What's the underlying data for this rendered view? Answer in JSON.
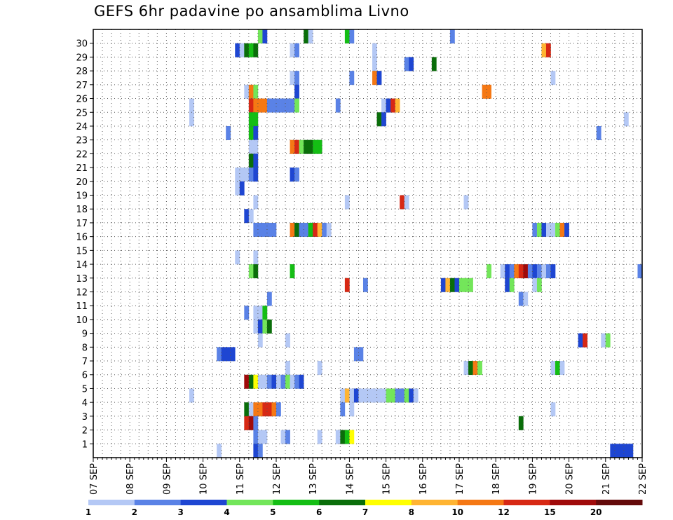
{
  "chart_data": {
    "type": "heatmap",
    "title": "GEFS 6hr padavine po ansamblima Livno",
    "xlabel": "",
    "ylabel": "",
    "x_ticks": [
      "07 SEP",
      "08 SEP",
      "09 SEP",
      "10 SEP",
      "11 SEP",
      "12 SEP",
      "13 SEP",
      "14 SEP",
      "15 SEP",
      "16 SEP",
      "17 SEP",
      "18 SEP",
      "19 SEP",
      "20 SEP",
      "21 SEP",
      "22 SEP"
    ],
    "y_ticks": [
      "1",
      "2",
      "3",
      "4",
      "5",
      "6",
      "7",
      "8",
      "9",
      "10",
      "11",
      "12",
      "13",
      "14",
      "15",
      "16",
      "17",
      "18",
      "19",
      "20",
      "21",
      "22",
      "23",
      "24",
      "25",
      "26",
      "27",
      "28",
      "29",
      "30"
    ],
    "x_step": "6 hr",
    "grid": true,
    "colorbar": {
      "position": "bottom",
      "labels": [
        "1",
        "2",
        "3",
        "4",
        "5",
        "6",
        "7",
        "8",
        "10",
        "12",
        "15",
        "20"
      ],
      "colors": [
        "#b4c8f5",
        "#5a82e6",
        "#1e46d2",
        "#73e65a",
        "#14be14",
        "#0a6e0a",
        "#ffff00",
        "#ffb432",
        "#f57814",
        "#d72814",
        "#a00a0a",
        "#640a0a"
      ]
    },
    "cells": [
      {
        "m": 30,
        "c": [
          [
            36,
            4
          ],
          [
            37,
            3
          ],
          [
            46,
            6
          ],
          [
            47,
            1
          ],
          [
            55,
            5
          ],
          [
            56,
            2
          ],
          [
            78,
            2
          ]
        ]
      },
      {
        "m": 29,
        "c": [
          [
            31,
            3
          ],
          [
            32,
            1
          ],
          [
            33,
            6
          ],
          [
            34,
            5
          ],
          [
            35,
            6
          ],
          [
            43,
            1
          ],
          [
            44,
            2
          ],
          [
            61,
            1
          ],
          [
            98,
            8
          ],
          [
            99,
            10
          ]
        ]
      },
      {
        "m": 28,
        "c": [
          [
            61,
            1
          ],
          [
            68,
            2
          ],
          [
            69,
            3
          ],
          [
            74,
            6
          ]
        ]
      },
      {
        "m": 27,
        "c": [
          [
            43,
            1
          ],
          [
            44,
            2
          ],
          [
            56,
            2
          ],
          [
            61,
            9
          ],
          [
            62,
            3
          ],
          [
            100,
            1
          ]
        ]
      },
      {
        "m": 26,
        "c": [
          [
            33,
            1
          ],
          [
            34,
            9
          ],
          [
            35,
            4
          ],
          [
            44,
            3
          ],
          [
            85,
            9
          ],
          [
            86,
            9
          ]
        ]
      },
      {
        "m": 25,
        "c": [
          [
            21,
            1
          ],
          [
            34,
            10
          ],
          [
            35,
            9
          ],
          [
            36,
            9
          ],
          [
            37,
            9
          ],
          [
            38,
            2
          ],
          [
            39,
            2
          ],
          [
            40,
            2
          ],
          [
            41,
            2
          ],
          [
            42,
            2
          ],
          [
            43,
            2
          ],
          [
            44,
            4
          ],
          [
            53,
            2
          ],
          [
            63,
            1
          ],
          [
            64,
            3
          ],
          [
            65,
            10
          ],
          [
            66,
            8
          ]
        ]
      },
      {
        "m": 24,
        "c": [
          [
            21,
            1
          ],
          [
            34,
            5
          ],
          [
            35,
            5
          ],
          [
            62,
            6
          ],
          [
            63,
            3
          ],
          [
            116,
            1
          ]
        ]
      },
      {
        "m": 23,
        "c": [
          [
            29,
            2
          ],
          [
            34,
            5
          ],
          [
            35,
            3
          ],
          [
            110,
            2
          ]
        ]
      },
      {
        "m": 22,
        "c": [
          [
            34,
            1
          ],
          [
            35,
            1
          ],
          [
            43,
            9
          ],
          [
            44,
            10
          ],
          [
            45,
            4
          ],
          [
            46,
            6
          ],
          [
            47,
            6
          ],
          [
            48,
            5
          ],
          [
            49,
            5
          ]
        ]
      },
      {
        "m": 21,
        "c": [
          [
            34,
            6
          ],
          [
            35,
            3
          ]
        ]
      },
      {
        "m": 20,
        "c": [
          [
            31,
            1
          ],
          [
            32,
            1
          ],
          [
            33,
            1
          ],
          [
            34,
            2
          ],
          [
            35,
            3
          ],
          [
            43,
            3
          ],
          [
            44,
            2
          ]
        ]
      },
      {
        "m": 19,
        "c": [
          [
            31,
            1
          ],
          [
            32,
            3
          ]
        ]
      },
      {
        "m": 18,
        "c": [
          [
            35,
            1
          ],
          [
            55,
            1
          ],
          [
            67,
            10
          ],
          [
            68,
            1
          ],
          [
            81,
            1
          ]
        ]
      },
      {
        "m": 17,
        "c": [
          [
            33,
            3
          ],
          [
            34,
            1
          ]
        ]
      },
      {
        "m": 16,
        "c": [
          [
            35,
            2
          ],
          [
            36,
            2
          ],
          [
            37,
            2
          ],
          [
            38,
            2
          ],
          [
            39,
            2
          ],
          [
            43,
            9
          ],
          [
            44,
            6
          ],
          [
            45,
            2
          ],
          [
            46,
            2
          ],
          [
            47,
            5
          ],
          [
            48,
            10
          ],
          [
            49,
            8
          ],
          [
            50,
            2
          ],
          [
            51,
            1
          ],
          [
            96,
            2
          ],
          [
            97,
            4
          ],
          [
            98,
            3
          ],
          [
            99,
            1
          ],
          [
            100,
            1
          ],
          [
            101,
            4
          ],
          [
            102,
            9
          ],
          [
            103,
            3
          ]
        ]
      },
      {
        "m": 14,
        "c": [
          [
            31,
            1
          ],
          [
            35,
            1
          ]
        ]
      },
      {
        "m": 13,
        "c": [
          [
            34,
            4
          ],
          [
            35,
            6
          ],
          [
            43,
            5
          ],
          [
            86,
            4
          ],
          [
            89,
            1
          ],
          [
            90,
            3
          ],
          [
            91,
            2
          ],
          [
            92,
            9
          ],
          [
            93,
            10
          ],
          [
            94,
            11
          ],
          [
            95,
            2
          ],
          [
            96,
            3
          ],
          [
            97,
            2
          ],
          [
            98,
            1
          ],
          [
            99,
            2
          ],
          [
            100,
            3
          ],
          [
            119,
            2
          ]
        ]
      },
      {
        "m": 12,
        "c": [
          [
            55,
            10
          ],
          [
            59,
            2
          ],
          [
            76,
            3
          ],
          [
            77,
            8
          ],
          [
            78,
            6
          ],
          [
            79,
            3
          ],
          [
            80,
            4
          ],
          [
            81,
            4
          ],
          [
            82,
            4
          ],
          [
            90,
            3
          ],
          [
            91,
            4
          ],
          [
            96,
            1
          ],
          [
            97,
            4
          ]
        ]
      },
      {
        "m": 11,
        "c": [
          [
            38,
            2
          ],
          [
            93,
            2
          ],
          [
            94,
            1
          ]
        ]
      },
      {
        "m": 10,
        "c": [
          [
            33,
            2
          ],
          [
            35,
            1
          ],
          [
            36,
            1
          ],
          [
            37,
            5
          ]
        ]
      },
      {
        "m": 9,
        "c": [
          [
            35,
            1
          ],
          [
            36,
            3
          ],
          [
            37,
            4
          ],
          [
            38,
            6
          ]
        ]
      },
      {
        "m": 8,
        "c": [
          [
            36,
            1
          ],
          [
            42,
            1
          ],
          [
            106,
            3
          ],
          [
            107,
            10
          ],
          [
            111,
            1
          ],
          [
            112,
            4
          ]
        ]
      },
      {
        "m": 7,
        "c": [
          [
            27,
            2
          ],
          [
            28,
            3
          ],
          [
            29,
            3
          ],
          [
            30,
            3
          ],
          [
            57,
            2
          ],
          [
            58,
            2
          ]
        ]
      },
      {
        "m": 6,
        "c": [
          [
            42,
            1
          ],
          [
            49,
            1
          ],
          [
            81,
            1
          ],
          [
            82,
            6
          ],
          [
            83,
            9
          ],
          [
            84,
            4
          ],
          [
            100,
            1
          ],
          [
            101,
            5
          ],
          [
            102,
            1
          ]
        ]
      },
      {
        "m": 5,
        "c": [
          [
            33,
            11
          ],
          [
            34,
            6
          ],
          [
            35,
            7
          ],
          [
            36,
            1
          ],
          [
            37,
            1
          ],
          [
            38,
            2
          ],
          [
            39,
            3
          ],
          [
            40,
            1
          ],
          [
            41,
            2
          ],
          [
            42,
            4
          ],
          [
            43,
            1
          ],
          [
            44,
            2
          ],
          [
            45,
            3
          ]
        ]
      },
      {
        "m": 4,
        "c": [
          [
            21,
            1
          ],
          [
            54,
            1
          ],
          [
            55,
            8
          ],
          [
            56,
            1
          ],
          [
            57,
            3
          ],
          [
            58,
            1
          ],
          [
            59,
            1
          ],
          [
            60,
            1
          ],
          [
            61,
            1
          ],
          [
            62,
            1
          ],
          [
            63,
            1
          ],
          [
            64,
            4
          ],
          [
            65,
            4
          ],
          [
            66,
            2
          ],
          [
            67,
            2
          ],
          [
            68,
            4
          ],
          [
            69,
            3
          ],
          [
            70,
            1
          ]
        ]
      },
      {
        "m": 3,
        "c": [
          [
            33,
            6
          ],
          [
            34,
            1
          ],
          [
            35,
            9
          ],
          [
            36,
            9
          ],
          [
            37,
            10
          ],
          [
            38,
            10
          ],
          [
            39,
            9
          ],
          [
            40,
            2
          ],
          [
            54,
            2
          ],
          [
            56,
            1
          ],
          [
            100,
            1
          ]
        ]
      },
      {
        "m": 2,
        "c": [
          [
            33,
            10
          ],
          [
            34,
            11
          ],
          [
            35,
            2
          ],
          [
            93,
            6
          ]
        ]
      },
      {
        "m": 1,
        "c": [
          [
            35,
            2
          ],
          [
            36,
            1
          ],
          [
            37,
            1
          ],
          [
            41,
            1
          ],
          [
            42,
            2
          ],
          [
            49,
            1
          ],
          [
            53,
            1
          ],
          [
            54,
            6
          ],
          [
            55,
            5
          ],
          [
            56,
            7
          ]
        ]
      },
      {
        "m": 0,
        "c": [
          [
            27,
            1
          ],
          [
            35,
            3
          ],
          [
            36,
            2
          ],
          [
            113,
            3
          ],
          [
            114,
            3
          ],
          [
            115,
            3
          ],
          [
            116,
            3
          ],
          [
            117,
            3
          ]
        ]
      }
    ]
  }
}
